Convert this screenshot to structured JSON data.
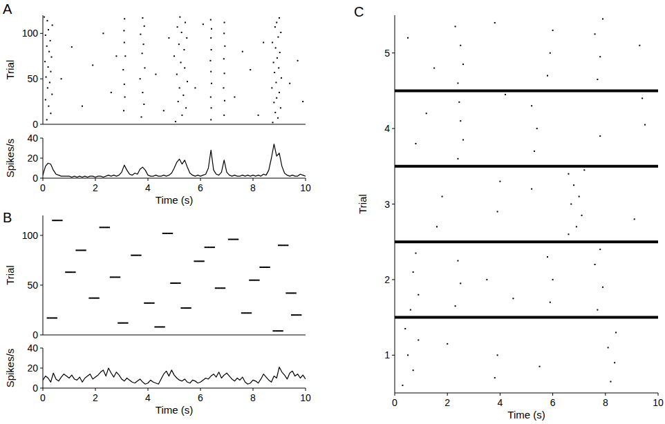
{
  "chart_data": [
    {
      "type": "raster",
      "panel_label": "A",
      "y_label": "Trial",
      "xlim": [
        0,
        10
      ],
      "ylim": [
        0,
        120
      ],
      "yticks": [
        0,
        50,
        100
      ],
      "tick_labels": "y",
      "color": "#000000",
      "x": [
        0.15,
        0.3,
        0.22,
        0.1,
        0.35,
        0.18,
        0.26,
        0.12,
        0.3,
        0.2,
        0.08,
        0.33,
        0.24,
        0.15,
        0.28,
        0.1,
        0.21,
        0.36,
        0.17,
        0.05,
        3.08,
        3.12,
        3.1,
        3.06,
        3.14,
        3.1,
        3.09,
        3.11,
        3.75,
        3.85,
        3.8,
        3.7,
        3.88,
        3.78,
        3.83,
        3.72,
        3.86,
        3.8,
        5.05,
        5.3,
        5.45,
        5.15,
        5.35,
        5.2,
        5.5,
        5.1,
        5.4,
        5.25,
        5.0,
        5.38,
        5.18,
        5.48,
        5.28,
        5.12,
        5.42,
        5.22,
        6.4,
        6.41,
        6.39,
        6.42,
        6.4,
        6.38,
        6.41,
        6.4,
        6.42,
        6.39,
        6.9,
        6.92,
        6.88,
        6.91,
        6.89,
        6.93,
        6.9,
        6.91,
        8.75,
        8.95,
        8.85,
        9.05,
        8.8,
        8.9,
        9.0,
        8.72,
        8.88,
        9.08,
        8.82,
        8.98,
        8.78,
        8.92,
        9.02,
        8.86,
        8.74,
        8.96,
        9.06,
        8.84,
        8.9,
        9.0,
        0.7,
        1.1,
        1.5,
        1.9,
        2.3,
        2.6,
        2.8,
        4.3,
        4.6,
        4.8,
        5.8,
        6.1,
        7.3,
        7.6,
        7.9,
        8.2,
        8.4,
        9.4,
        9.7,
        9.9
      ],
      "y": [
        5,
        12,
        20,
        27,
        33,
        40,
        46,
        52,
        58,
        63,
        69,
        74,
        80,
        86,
        92,
        98,
        104,
        109,
        114,
        118,
        15,
        30,
        44,
        60,
        75,
        90,
        103,
        116,
        8,
        22,
        35,
        50,
        62,
        78,
        88,
        99,
        108,
        117,
        3,
        10,
        18,
        25,
        32,
        40,
        47,
        55,
        62,
        68,
        75,
        82,
        88,
        95,
        101,
        107,
        112,
        118,
        5,
        18,
        30,
        45,
        58,
        70,
        82,
        95,
        105,
        115,
        10,
        26,
        40,
        56,
        72,
        86,
        100,
        112,
        2,
        7,
        13,
        18,
        24,
        29,
        35,
        40,
        46,
        51,
        57,
        62,
        68,
        73,
        79,
        84,
        90,
        96,
        101,
        107,
        112,
        117,
        50,
        85,
        20,
        65,
        100,
        35,
        75,
        55,
        15,
        95,
        40,
        110,
        30,
        80,
        60,
        10,
        90,
        45,
        70,
        25
      ]
    },
    {
      "type": "line",
      "y_label": "Spikes/s",
      "x_label": "Time (s)",
      "xlim": [
        0,
        10
      ],
      "ylim": [
        0,
        40
      ],
      "xticks": [
        0,
        2,
        4,
        6,
        8,
        10
      ],
      "yticks": [
        0,
        20,
        40
      ],
      "color": "#000000",
      "x": [
        0,
        0.1,
        0.2,
        0.3,
        0.4,
        0.5,
        0.6,
        0.7,
        0.8,
        0.9,
        1,
        1.1,
        1.2,
        1.3,
        1.4,
        1.5,
        1.6,
        1.7,
        1.8,
        1.9,
        2,
        2.1,
        2.2,
        2.3,
        2.4,
        2.5,
        2.6,
        2.7,
        2.8,
        2.9,
        3,
        3.1,
        3.2,
        3.3,
        3.4,
        3.5,
        3.6,
        3.7,
        3.8,
        3.9,
        4,
        4.1,
        4.2,
        4.3,
        4.4,
        4.5,
        4.6,
        4.7,
        4.8,
        4.9,
        5,
        5.1,
        5.2,
        5.3,
        5.4,
        5.5,
        5.6,
        5.7,
        5.8,
        5.9,
        6,
        6.1,
        6.2,
        6.3,
        6.4,
        6.5,
        6.6,
        6.7,
        6.8,
        6.9,
        7,
        7.1,
        7.2,
        7.3,
        7.4,
        7.5,
        7.6,
        7.7,
        7.8,
        7.9,
        8,
        8.1,
        8.2,
        8.3,
        8.4,
        8.5,
        8.6,
        8.7,
        8.8,
        8.9,
        9,
        9.1,
        9.2,
        9.3,
        9.4,
        9.5,
        9.6,
        9.7,
        9.8,
        9.9,
        10
      ],
      "values": [
        3,
        12,
        15,
        14,
        8,
        4,
        3,
        2,
        2,
        2,
        2,
        1,
        2,
        1,
        2,
        1,
        2,
        1,
        2,
        2,
        1,
        2,
        2,
        1,
        2,
        3,
        2,
        3,
        2,
        3,
        6,
        13,
        8,
        4,
        3,
        5,
        4,
        9,
        11,
        8,
        3,
        2,
        2,
        3,
        2,
        2,
        3,
        2,
        3,
        5,
        10,
        16,
        19,
        14,
        18,
        11,
        5,
        3,
        2,
        3,
        2,
        3,
        4,
        10,
        28,
        8,
        4,
        3,
        6,
        18,
        6,
        3,
        2,
        3,
        2,
        2,
        3,
        2,
        3,
        2,
        3,
        2,
        3,
        2,
        4,
        3,
        8,
        20,
        34,
        22,
        25,
        12,
        5,
        3,
        2,
        3,
        2,
        2,
        4,
        3,
        2
      ]
    },
    {
      "type": "raster",
      "panel_label": "B",
      "y_label": "Trial",
      "xlim": [
        0,
        10
      ],
      "ylim": [
        0,
        120
      ],
      "yticks": [
        0,
        50,
        100
      ],
      "tick_labels": "y",
      "color": "#000000",
      "x": [
        0.4,
        0.5,
        0.6,
        0.7,
        2.2,
        2.3,
        2.4,
        2.5,
        4.6,
        4.7,
        4.8,
        4.9,
        7.1,
        7.2,
        7.3,
        7.4,
        9.0,
        9.1,
        9.2,
        9.3,
        1.3,
        1.4,
        1.5,
        1.6,
        3.4,
        3.5,
        3.6,
        3.7,
        5.8,
        5.9,
        6.0,
        6.1,
        8.3,
        8.4,
        8.5,
        8.6,
        0.9,
        1.0,
        1.1,
        1.2,
        2.6,
        2.7,
        2.8,
        2.9,
        4.9,
        5.0,
        5.1,
        5.2,
        6.6,
        6.7,
        6.8,
        6.9,
        9.3,
        9.4,
        9.5,
        9.6,
        1.8,
        1.9,
        2.0,
        2.1,
        3.9,
        4.0,
        4.1,
        4.2,
        5.3,
        5.4,
        5.5,
        5.6,
        7.6,
        7.7,
        7.8,
        7.9,
        0.2,
        0.3,
        0.4,
        0.5,
        2.9,
        3.0,
        3.1,
        3.2,
        4.3,
        4.4,
        4.5,
        4.6,
        8.8,
        8.9,
        9.0,
        9.1,
        7.9,
        8.0,
        8.1,
        8.2,
        6.2,
        6.3,
        6.4,
        6.5,
        9.5,
        9.6,
        9.7,
        9.8
      ],
      "y": [
        115,
        115,
        115,
        115,
        108,
        108,
        108,
        108,
        102,
        102,
        102,
        102,
        96,
        96,
        96,
        96,
        90,
        90,
        90,
        90,
        85,
        85,
        85,
        85,
        80,
        80,
        80,
        80,
        74,
        74,
        74,
        74,
        68,
        68,
        68,
        68,
        63,
        63,
        63,
        63,
        58,
        58,
        58,
        58,
        52,
        52,
        52,
        52,
        47,
        47,
        47,
        47,
        42,
        42,
        42,
        42,
        37,
        37,
        37,
        37,
        32,
        32,
        32,
        32,
        27,
        27,
        27,
        27,
        22,
        22,
        22,
        22,
        17,
        17,
        17,
        17,
        12,
        12,
        12,
        12,
        8,
        8,
        8,
        8,
        4,
        4,
        4,
        4,
        55,
        55,
        55,
        55,
        88,
        88,
        88,
        88,
        20,
        20,
        20,
        20
      ]
    },
    {
      "type": "line",
      "y_label": "Spikes/s",
      "x_label": "Time (s)",
      "xlim": [
        0,
        10
      ],
      "ylim": [
        0,
        40
      ],
      "xticks": [
        0,
        2,
        4,
        6,
        8,
        10
      ],
      "yticks": [
        0,
        20,
        40
      ],
      "color": "#000000",
      "x": [
        0,
        0.1,
        0.2,
        0.3,
        0.4,
        0.5,
        0.6,
        0.7,
        0.8,
        0.9,
        1,
        1.1,
        1.2,
        1.3,
        1.4,
        1.5,
        1.6,
        1.7,
        1.8,
        1.9,
        2,
        2.1,
        2.2,
        2.3,
        2.4,
        2.5,
        2.6,
        2.7,
        2.8,
        2.9,
        3,
        3.1,
        3.2,
        3.3,
        3.4,
        3.5,
        3.6,
        3.7,
        3.8,
        3.9,
        4,
        4.1,
        4.2,
        4.3,
        4.4,
        4.5,
        4.6,
        4.7,
        4.8,
        4.9,
        5,
        5.1,
        5.2,
        5.3,
        5.4,
        5.5,
        5.6,
        5.7,
        5.8,
        5.9,
        6,
        6.1,
        6.2,
        6.3,
        6.4,
        6.5,
        6.6,
        6.7,
        6.8,
        6.9,
        7,
        7.1,
        7.2,
        7.3,
        7.4,
        7.5,
        7.6,
        7.7,
        7.8,
        7.9,
        8,
        8.1,
        8.2,
        8.3,
        8.4,
        8.5,
        8.6,
        8.7,
        8.8,
        8.9,
        9,
        9.1,
        9.2,
        9.3,
        9.4,
        9.5,
        9.6,
        9.7,
        9.8,
        9.9,
        10
      ],
      "values": [
        8,
        12,
        10,
        6,
        15,
        9,
        7,
        11,
        14,
        12,
        10,
        13,
        9,
        8,
        11,
        6,
        10,
        12,
        14,
        9,
        11,
        13,
        16,
        18,
        12,
        20,
        15,
        11,
        16,
        13,
        9,
        7,
        10,
        8,
        6,
        5,
        7,
        9,
        6,
        4,
        5,
        8,
        6,
        5,
        4,
        9,
        14,
        17,
        12,
        18,
        13,
        10,
        8,
        7,
        9,
        6,
        5,
        8,
        7,
        5,
        6,
        8,
        10,
        9,
        12,
        14,
        11,
        16,
        10,
        13,
        15,
        12,
        9,
        7,
        10,
        8,
        11,
        6,
        4,
        5,
        8,
        7,
        5,
        9,
        14,
        11,
        8,
        6,
        12,
        10,
        21,
        16,
        13,
        9,
        15,
        17,
        12,
        14,
        10,
        13,
        9
      ]
    },
    {
      "type": "raster",
      "panel_label": "C",
      "y_label": "Trial",
      "x_label": "Time (s)",
      "xlim": [
        0,
        10
      ],
      "ylim": [
        0.5,
        5.5
      ],
      "xticks": [
        0,
        2,
        4,
        6,
        8,
        10
      ],
      "yticks": [
        1,
        2,
        3,
        4,
        5
      ],
      "separators": [
        1.5,
        2.5,
        3.5,
        4.5
      ],
      "color": "#000000",
      "x": [
        0.3,
        0.7,
        0.5,
        0.9,
        0.4,
        8.2,
        8.35,
        8.1,
        8.4,
        3.8,
        3.9,
        5.5,
        2.0,
        0.6,
        0.9,
        0.7,
        0.8,
        2.3,
        2.5,
        2.4,
        5.9,
        6.0,
        5.8,
        7.7,
        7.9,
        7.6,
        7.8,
        3.5,
        4.5,
        6.6,
        6.9,
        7.1,
        6.7,
        7.0,
        6.8,
        6.6,
        7.2,
        1.6,
        1.8,
        3.9,
        4.0,
        9.1,
        5.2,
        2.4,
        2.6,
        2.5,
        2.45,
        5.3,
        5.4,
        5.2,
        0.8,
        1.2,
        9.4,
        9.5,
        7.8,
        4.2,
        2.4,
        2.6,
        2.5,
        2.3,
        5.8,
        5.9,
        6.0,
        7.7,
        7.8,
        7.6,
        7.9,
        0.5,
        1.5,
        3.8,
        9.3
      ],
      "y": [
        0.6,
        0.8,
        1.0,
        1.2,
        1.35,
        0.65,
        0.9,
        1.1,
        1.3,
        0.7,
        1.0,
        0.85,
        1.15,
        1.6,
        1.8,
        2.1,
        2.35,
        1.65,
        1.95,
        2.25,
        1.7,
        2.0,
        2.3,
        1.6,
        1.9,
        2.2,
        2.4,
        2.0,
        1.75,
        2.6,
        2.7,
        2.85,
        3.0,
        3.1,
        3.25,
        3.4,
        3.45,
        2.7,
        3.1,
        2.9,
        3.3,
        2.8,
        3.2,
        3.6,
        3.85,
        4.1,
        4.35,
        3.7,
        4.0,
        4.3,
        3.8,
        4.2,
        4.4,
        4.05,
        3.9,
        4.45,
        4.6,
        4.85,
        5.1,
        5.35,
        4.7,
        5.0,
        5.3,
        4.65,
        4.95,
        5.25,
        5.45,
        5.2,
        4.8,
        5.4,
        5.1
      ]
    }
  ]
}
